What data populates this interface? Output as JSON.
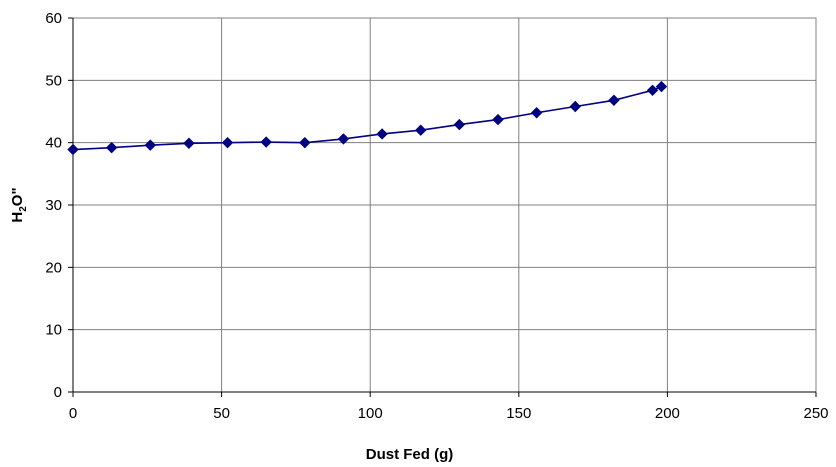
{
  "chart_data": {
    "type": "line",
    "title": "",
    "xlabel": "Dust Fed (g)",
    "ylabel": {
      "main": "H",
      "sub": "2",
      "tail": "O\""
    },
    "xlim": [
      0,
      250
    ],
    "ylim": [
      0,
      60
    ],
    "x_ticks": [
      0,
      50,
      100,
      150,
      200,
      250
    ],
    "y_ticks": [
      0,
      10,
      20,
      30,
      40,
      50,
      60
    ],
    "grid": true,
    "legend": "none",
    "colors": {
      "series": "#000080",
      "grid": "#808080",
      "axis": "#000000"
    },
    "series": [
      {
        "marker": "diamond",
        "x": [
          0,
          13,
          26,
          39,
          52,
          65,
          78,
          91,
          104,
          117,
          130,
          143,
          156,
          169,
          182,
          195,
          198
        ],
        "y": [
          38.9,
          39.2,
          39.6,
          39.9,
          40.0,
          40.1,
          40.0,
          40.6,
          41.4,
          42.0,
          42.9,
          43.7,
          44.8,
          45.8,
          46.8,
          48.4,
          49.0
        ]
      }
    ]
  }
}
